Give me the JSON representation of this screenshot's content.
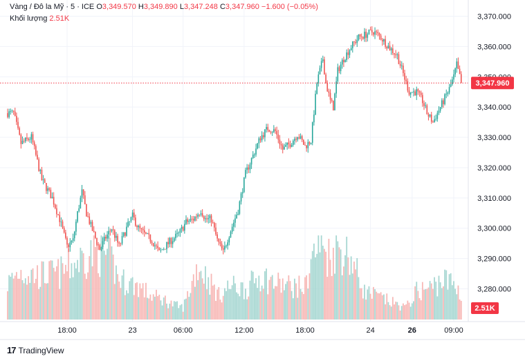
{
  "header": {
    "symbol": "Vàng / Đô la Mỹ · 5 · ICE",
    "o_label": "O",
    "o_value": "3,349.570",
    "h_label": "H",
    "h_value": "3,349.890",
    "l_label": "L",
    "l_value": "3,347.248",
    "c_label": "C",
    "c_value": "3,347.960",
    "change": "−1.600 (−0.05%)"
  },
  "volume_legend": {
    "label": "Khối lượng",
    "value": "2.51K"
  },
  "brand": {
    "logo": "17",
    "name": "TradingView"
  },
  "colors": {
    "up": "#26a69a",
    "down": "#ef5350",
    "vol_up": "#a7d7d2",
    "vol_down": "#f7b8b6",
    "price_line": "#f23645",
    "price_tag": "#f23645",
    "vol_tag": "#f23645"
  },
  "chart_data": {
    "type": "candlestick",
    "title": "",
    "xlabel": "",
    "ylabel": "",
    "ylim": [
      3282,
      3372
    ],
    "y_ticks": [
      3370,
      3360,
      3350,
      3340,
      3330,
      3320,
      3310,
      3300,
      3290,
      3280
    ],
    "y_tick_labels": [
      "3,370.000",
      "3,360.000",
      "3,350.000",
      "3,340.000",
      "3,330.000",
      "3,320.000",
      "3,310.000",
      "3,300.000",
      "3,290.000",
      "3,280.000"
    ],
    "x_tick_labels": [
      "18:00",
      "23",
      "06:00",
      "12:00",
      "18:00",
      "24",
      "26",
      "09:00"
    ],
    "x_tick_index": [
      40,
      84,
      118,
      159,
      200,
      244,
      272,
      300
    ],
    "bold_ticks": [
      "26"
    ],
    "last_price": 3347.96,
    "last_price_label": "3,347.960",
    "last_volume_label": "2.51K",
    "price_path": [
      [
        0,
        3338
      ],
      [
        4,
        3338
      ],
      [
        9,
        3328
      ],
      [
        16,
        3330
      ],
      [
        23,
        3316
      ],
      [
        30,
        3310
      ],
      [
        35,
        3303
      ],
      [
        40,
        3294
      ],
      [
        44,
        3296
      ],
      [
        47,
        3305
      ],
      [
        50,
        3312
      ],
      [
        53,
        3305
      ],
      [
        58,
        3298
      ],
      [
        62,
        3293
      ],
      [
        66,
        3297
      ],
      [
        70,
        3300
      ],
      [
        75,
        3294
      ],
      [
        80,
        3300
      ],
      [
        84,
        3304
      ],
      [
        88,
        3300
      ],
      [
        92,
        3298
      ],
      [
        97,
        3296
      ],
      [
        102,
        3292
      ],
      [
        106,
        3294
      ],
      [
        110,
        3296
      ],
      [
        115,
        3298
      ],
      [
        120,
        3302
      ],
      [
        125,
        3303
      ],
      [
        130,
        3306
      ],
      [
        133,
        3303
      ],
      [
        137,
        3303
      ],
      [
        141,
        3296
      ],
      [
        145,
        3292
      ],
      [
        149,
        3298
      ],
      [
        155,
        3306
      ],
      [
        160,
        3318
      ],
      [
        165,
        3324
      ],
      [
        170,
        3330
      ],
      [
        175,
        3333
      ],
      [
        180,
        3332
      ],
      [
        185,
        3326
      ],
      [
        190,
        3328
      ],
      [
        195,
        3331
      ],
      [
        200,
        3327
      ],
      [
        204,
        3329
      ],
      [
        208,
        3348
      ],
      [
        212,
        3356
      ],
      [
        214,
        3348
      ],
      [
        217,
        3342
      ],
      [
        219,
        3340
      ],
      [
        222,
        3352
      ],
      [
        226,
        3356
      ],
      [
        231,
        3360
      ],
      [
        236,
        3363
      ],
      [
        241,
        3364
      ],
      [
        246,
        3365
      ],
      [
        251,
        3363
      ],
      [
        256,
        3360
      ],
      [
        262,
        3357
      ],
      [
        266,
        3351
      ],
      [
        270,
        3345
      ],
      [
        275,
        3345
      ],
      [
        279,
        3342
      ],
      [
        282,
        3338
      ],
      [
        286,
        3335
      ],
      [
        289,
        3338
      ],
      [
        293,
        3342
      ],
      [
        297,
        3346
      ],
      [
        300,
        3350
      ],
      [
        302,
        3354
      ],
      [
        305,
        3348
      ]
    ],
    "volume_path": [
      [
        0,
        0.45
      ],
      [
        8,
        0.6
      ],
      [
        20,
        0.55
      ],
      [
        35,
        0.58
      ],
      [
        45,
        0.7
      ],
      [
        55,
        0.82
      ],
      [
        60,
        0.85
      ],
      [
        68,
        0.8
      ],
      [
        75,
        0.5
      ],
      [
        82,
        0.45
      ],
      [
        88,
        0.42
      ],
      [
        96,
        0.3
      ],
      [
        105,
        0.25
      ],
      [
        112,
        0.18
      ],
      [
        118,
        0.15
      ],
      [
        122,
        0.35
      ],
      [
        128,
        0.68
      ],
      [
        135,
        0.5
      ],
      [
        142,
        0.3
      ],
      [
        150,
        0.42
      ],
      [
        160,
        0.38
      ],
      [
        170,
        0.55
      ],
      [
        180,
        0.45
      ],
      [
        190,
        0.42
      ],
      [
        200,
        0.4
      ],
      [
        204,
        0.75
      ],
      [
        210,
        0.95
      ],
      [
        216,
        0.8
      ],
      [
        222,
        0.9
      ],
      [
        230,
        0.8
      ],
      [
        240,
        0.35
      ],
      [
        250,
        0.28
      ],
      [
        260,
        0.2
      ],
      [
        268,
        0.15
      ],
      [
        275,
        0.35
      ],
      [
        285,
        0.4
      ],
      [
        292,
        0.5
      ],
      [
        300,
        0.45
      ],
      [
        305,
        0.32
      ]
    ]
  }
}
